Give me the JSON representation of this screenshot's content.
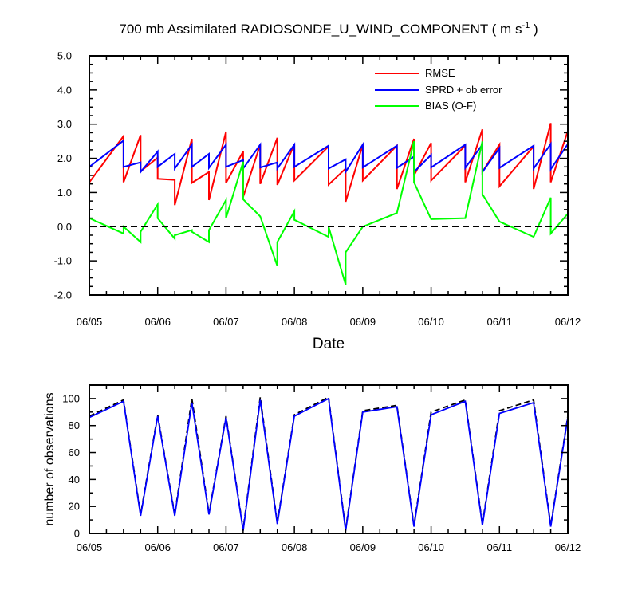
{
  "chart_data": [
    {
      "type": "line",
      "title": "700 mb Assimilated RADIOSONDE_U_WIND_COMPONENT",
      "title_units": "( m s",
      "title_units_sup": "-1",
      "title_units_close": " )",
      "xlabel": "Date",
      "ylabel": "",
      "xlim": [
        0,
        7
      ],
      "ylim": [
        -2.0,
        5.0
      ],
      "yticks": [
        -2.0,
        -1.0,
        0.0,
        1.0,
        2.0,
        3.0,
        4.0,
        5.0
      ],
      "ytick_labels": [
        "-2.0",
        "-1.0",
        "0.0",
        "1.0",
        "2.0",
        "3.0",
        "4.0",
        "5.0"
      ],
      "xtick_labels": [
        "06/05",
        "06/06",
        "06/07",
        "06/08",
        "06/09",
        "06/10",
        "06/11",
        "06/12"
      ],
      "zero_line": 0.0,
      "legend_position": "top-right",
      "series": [
        {
          "name": "RMSE",
          "color": "#ff0000",
          "points": [
            [
              0,
              1.3
            ],
            [
              0.5,
              2.65
            ],
            [
              0.5,
              1.3
            ],
            [
              0.75,
              2.68
            ],
            [
              0.75,
              1.62
            ],
            [
              1,
              2.02
            ],
            [
              1,
              1.4
            ],
            [
              1.25,
              1.37
            ],
            [
              1.25,
              0.63
            ],
            [
              1.5,
              2.57
            ],
            [
              1.5,
              1.28
            ],
            [
              1.75,
              1.6
            ],
            [
              1.75,
              0.78
            ],
            [
              2,
              2.78
            ],
            [
              2,
              1.28
            ],
            [
              2.25,
              2.2
            ],
            [
              2.25,
              0.87
            ],
            [
              2.5,
              2.4
            ],
            [
              2.5,
              1.25
            ],
            [
              2.75,
              2.6
            ],
            [
              2.75,
              1.22
            ],
            [
              3,
              2.42
            ],
            [
              3,
              1.35
            ],
            [
              3.5,
              2.35
            ],
            [
              3.5,
              1.23
            ],
            [
              3.75,
              1.7
            ],
            [
              3.75,
              0.73
            ],
            [
              4,
              2.4
            ],
            [
              4,
              1.35
            ],
            [
              4.5,
              2.37
            ],
            [
              4.5,
              1.1
            ],
            [
              4.75,
              2.57
            ],
            [
              4.75,
              1.5
            ],
            [
              5,
              2.45
            ],
            [
              5,
              1.35
            ],
            [
              5.5,
              2.37
            ],
            [
              5.5,
              1.3
            ],
            [
              5.75,
              2.85
            ],
            [
              5.75,
              1.6
            ],
            [
              6,
              2.4
            ],
            [
              6,
              1.18
            ],
            [
              6.5,
              2.35
            ],
            [
              6.5,
              1.1
            ],
            [
              6.75,
              3.03
            ],
            [
              6.75,
              1.3
            ],
            [
              7,
              2.8
            ],
            [
              7,
              1.3
            ]
          ]
        },
        {
          "name": "SPRD + ob error",
          "color": "#0000ff",
          "points": [
            [
              0,
              1.75
            ],
            [
              0.5,
              2.52
            ],
            [
              0.5,
              1.75
            ],
            [
              0.75,
              1.88
            ],
            [
              0.75,
              1.6
            ],
            [
              1,
              2.2
            ],
            [
              1,
              1.75
            ],
            [
              1.25,
              2.13
            ],
            [
              1.25,
              1.7
            ],
            [
              1.5,
              2.4
            ],
            [
              1.5,
              1.75
            ],
            [
              1.75,
              2.13
            ],
            [
              1.75,
              1.72
            ],
            [
              2,
              2.4
            ],
            [
              2,
              1.75
            ],
            [
              2.25,
              1.95
            ],
            [
              2.25,
              1.7
            ],
            [
              2.5,
              2.4
            ],
            [
              2.5,
              1.73
            ],
            [
              2.75,
              1.88
            ],
            [
              2.75,
              1.7
            ],
            [
              3,
              2.4
            ],
            [
              3,
              1.75
            ],
            [
              3.5,
              2.37
            ],
            [
              3.5,
              1.7
            ],
            [
              3.75,
              1.97
            ],
            [
              3.75,
              1.6
            ],
            [
              4,
              2.4
            ],
            [
              4,
              1.73
            ],
            [
              4.5,
              2.37
            ],
            [
              4.5,
              1.72
            ],
            [
              4.75,
              2.05
            ],
            [
              4.75,
              1.6
            ],
            [
              5,
              2.1
            ],
            [
              5,
              1.73
            ],
            [
              5.5,
              2.4
            ],
            [
              5.5,
              1.72
            ],
            [
              5.75,
              2.4
            ],
            [
              5.75,
              1.6
            ],
            [
              6,
              2.3
            ],
            [
              6,
              1.72
            ],
            [
              6.5,
              2.37
            ],
            [
              6.5,
              1.7
            ],
            [
              6.75,
              2.42
            ],
            [
              6.75,
              1.68
            ],
            [
              7,
              2.42
            ],
            [
              7,
              1.68
            ]
          ]
        },
        {
          "name": "BIAS (O-F)",
          "color": "#00ff00",
          "points": [
            [
              0,
              0.5
            ],
            [
              0,
              0.25
            ],
            [
              0.5,
              -0.2
            ],
            [
              0.5,
              0.0
            ],
            [
              0.75,
              -0.45
            ],
            [
              0.75,
              -0.15
            ],
            [
              1,
              0.65
            ],
            [
              1,
              0.25
            ],
            [
              1.25,
              -0.35
            ],
            [
              1.25,
              -0.25
            ],
            [
              1.5,
              -0.1
            ],
            [
              1.5,
              -0.15
            ],
            [
              1.75,
              -0.45
            ],
            [
              1.75,
              -0.1
            ],
            [
              2,
              0.78
            ],
            [
              2,
              0.25
            ],
            [
              2.25,
              1.9
            ],
            [
              2.25,
              0.8
            ],
            [
              2.5,
              0.3
            ],
            [
              2.75,
              -1.15
            ],
            [
              2.75,
              -0.45
            ],
            [
              3,
              0.45
            ],
            [
              3,
              0.2
            ],
            [
              3.5,
              -0.3
            ],
            [
              3.5,
              0.0
            ],
            [
              3.75,
              -1.7
            ],
            [
              3.75,
              -0.75
            ],
            [
              4,
              0.0
            ],
            [
              4.5,
              0.4
            ],
            [
              4.75,
              2.5
            ],
            [
              4.75,
              1.3
            ],
            [
              5,
              0.22
            ],
            [
              5.5,
              0.25
            ],
            [
              5.75,
              2.5
            ],
            [
              5.75,
              0.95
            ],
            [
              6,
              0.15
            ],
            [
              6.5,
              -0.3
            ],
            [
              6.75,
              0.85
            ],
            [
              6.75,
              -0.2
            ],
            [
              7,
              0.38
            ]
          ]
        }
      ]
    },
    {
      "type": "line",
      "title": "",
      "xlabel": "",
      "ylabel": "number of observations",
      "xlim": [
        0,
        7
      ],
      "ylim": [
        0,
        110
      ],
      "yticks": [
        0,
        20,
        40,
        60,
        80,
        100
      ],
      "ytick_labels": [
        "0",
        "20",
        "40",
        "60",
        "80",
        "100"
      ],
      "xtick_labels": [
        "06/05",
        "06/06",
        "06/07",
        "06/08",
        "06/09",
        "06/10",
        "06/11",
        "06/12"
      ],
      "series": [
        {
          "name": "observations (dashed)",
          "color": "#000000",
          "dashed": true,
          "points": [
            [
              0,
              87
            ],
            [
              0.5,
              99
            ],
            [
              0.75,
              14
            ],
            [
              1,
              88
            ],
            [
              1.25,
              14
            ],
            [
              1.5,
              100
            ],
            [
              1.75,
              15
            ],
            [
              2,
              87
            ],
            [
              2.25,
              3
            ],
            [
              2.5,
              101
            ],
            [
              2.75,
              8
            ],
            [
              3,
              88
            ],
            [
              3.5,
              101
            ],
            [
              3.75,
              3
            ],
            [
              4,
              91
            ],
            [
              4.5,
              95
            ],
            [
              4.75,
              6
            ],
            [
              5,
              90
            ],
            [
              5.5,
              99
            ],
            [
              5.75,
              7
            ],
            [
              6,
              91
            ],
            [
              6.5,
              99
            ],
            [
              6.75,
              6
            ],
            [
              7,
              87
            ]
          ]
        },
        {
          "name": "observations (blue)",
          "color": "#0000ff",
          "dashed": false,
          "points": [
            [
              0,
              86
            ],
            [
              0.5,
              98
            ],
            [
              0.75,
              13
            ],
            [
              1,
              87
            ],
            [
              1.25,
              13
            ],
            [
              1.5,
              97
            ],
            [
              1.75,
              14
            ],
            [
              2,
              86
            ],
            [
              2.25,
              2
            ],
            [
              2.5,
              99
            ],
            [
              2.75,
              7
            ],
            [
              3,
              87
            ],
            [
              3.5,
              100
            ],
            [
              3.75,
              2
            ],
            [
              4,
              90
            ],
            [
              4.5,
              94
            ],
            [
              4.75,
              5
            ],
            [
              5,
              88
            ],
            [
              5.5,
              98
            ],
            [
              5.75,
              6
            ],
            [
              6,
              89
            ],
            [
              6.5,
              97
            ],
            [
              6.75,
              5
            ],
            [
              7,
              86
            ]
          ]
        }
      ]
    }
  ]
}
